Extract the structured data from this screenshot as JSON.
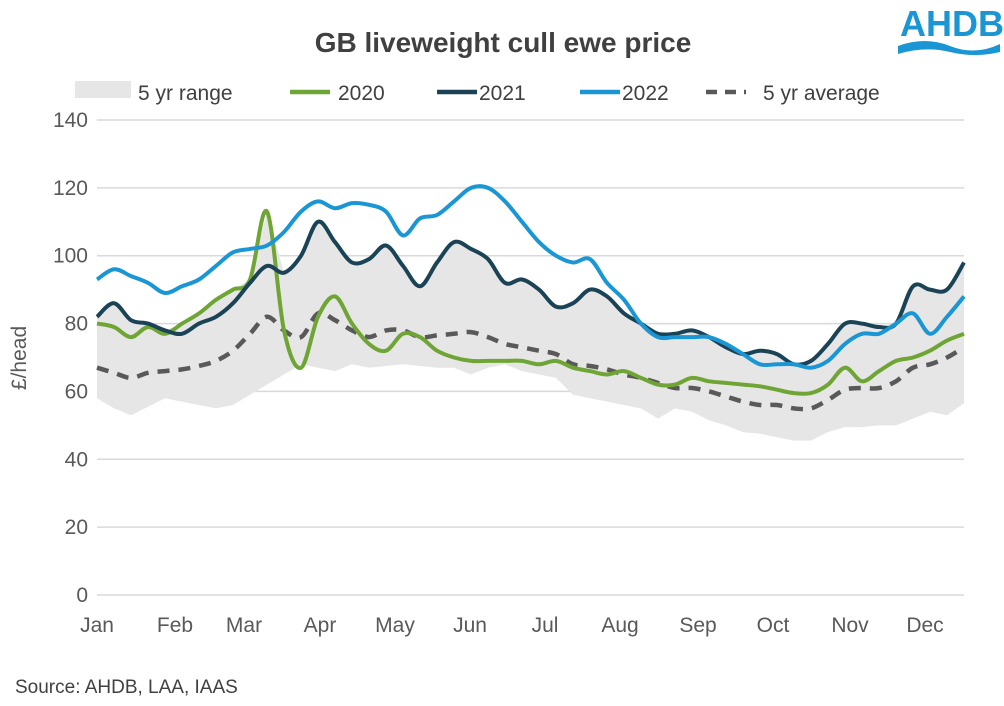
{
  "logo": {
    "text": "AHDB",
    "color": "#1a96d4"
  },
  "source": "Source: AHDB, LAA, IAAS",
  "chart_data": {
    "type": "line",
    "title": "GB liveweight cull ewe price",
    "xlabel": "",
    "ylabel": "£/head",
    "ylim": [
      0,
      140
    ],
    "yticks": [
      0,
      20,
      40,
      60,
      80,
      100,
      120,
      140
    ],
    "grid": true,
    "legend_position": "top",
    "x_tick_labels": [
      "Jan",
      "Feb",
      "Mar",
      "Apr",
      "May",
      "Jun",
      "Jul",
      "Aug",
      "Sep",
      "Oct",
      "Nov",
      "Dec"
    ],
    "range": {
      "name": "5 yr range",
      "color": "#e6e6e6",
      "min": [
        58,
        55,
        53,
        55.5,
        58,
        57,
        56,
        55,
        56,
        59,
        62,
        65,
        68,
        67,
        66,
        68,
        67,
        67.5,
        68,
        67.5,
        67,
        67,
        65,
        67,
        68,
        66,
        65,
        64,
        59,
        58,
        57,
        56,
        55,
        52,
        55,
        54,
        51.5,
        50,
        48,
        47.5,
        46.5,
        45.5,
        45.5,
        48,
        49.5,
        49.5,
        50,
        50,
        52,
        54,
        53,
        56.5
      ],
      "max": [
        82,
        86,
        81,
        80,
        78,
        80,
        83,
        87,
        90,
        93,
        113,
        95,
        100,
        110,
        104,
        98,
        99,
        103,
        97,
        91,
        98,
        104,
        102,
        99,
        92,
        93,
        90,
        85,
        86,
        90,
        88,
        83,
        80,
        77,
        77,
        78,
        76,
        73,
        71,
        72,
        71,
        68,
        69,
        74,
        80,
        80,
        79,
        80,
        91,
        90,
        90,
        98
      ]
    },
    "series": [
      {
        "name": "2020",
        "color": "#6fa535",
        "dash": false,
        "values": [
          80,
          79,
          76,
          79,
          77,
          80,
          83,
          87,
          90,
          93,
          113,
          78,
          67,
          82,
          88,
          80,
          74,
          72,
          77,
          76,
          72,
          70,
          69,
          69,
          69,
          69,
          68,
          69,
          67,
          66,
          65,
          66,
          64,
          62,
          62,
          64,
          63,
          62.5,
          62,
          61.5,
          60.5,
          59.5,
          59.5,
          62,
          67,
          63,
          66,
          69,
          70,
          72,
          75,
          77
        ]
      },
      {
        "name": "2021",
        "color": "#1b4356",
        "dash": false,
        "values": [
          82,
          86,
          81,
          80,
          78,
          77,
          80,
          82,
          86,
          92,
          97,
          95,
          100,
          110,
          104,
          98,
          99,
          103,
          97,
          91,
          98,
          104,
          102,
          99,
          92,
          93,
          90,
          85,
          86,
          90,
          88,
          83,
          80,
          77,
          77,
          78,
          76,
          73,
          71,
          72,
          71,
          68,
          69,
          74,
          80,
          80,
          79,
          80,
          91,
          90,
          90,
          98
        ]
      },
      {
        "name": "2022",
        "color": "#1a96d4",
        "dash": false,
        "values": [
          93,
          96,
          94,
          92,
          89,
          91,
          93,
          97,
          101,
          102,
          103,
          107,
          113,
          116,
          114,
          115.5,
          115,
          113,
          106,
          111,
          112,
          116,
          120,
          120,
          116,
          110,
          104,
          100,
          98,
          99,
          92,
          87,
          80,
          76,
          76,
          76,
          76,
          74,
          71,
          68,
          68,
          68,
          67,
          69,
          74,
          77,
          77,
          80,
          83,
          77,
          82,
          88
        ]
      },
      {
        "name": "5 yr average",
        "color": "#595959",
        "dash": true,
        "values": [
          67,
          65.5,
          64,
          65.5,
          66,
          66.5,
          67.5,
          69,
          72,
          77,
          82,
          78,
          76,
          83,
          81,
          78,
          76,
          78,
          78,
          76,
          76.5,
          77,
          77.5,
          76,
          74,
          73,
          72,
          71,
          68,
          67.5,
          66.5,
          65,
          64,
          62.5,
          61,
          61,
          60,
          58.5,
          57,
          56,
          56,
          55,
          55,
          57.5,
          60.5,
          61,
          61,
          63,
          67,
          68,
          70,
          73
        ]
      }
    ]
  }
}
